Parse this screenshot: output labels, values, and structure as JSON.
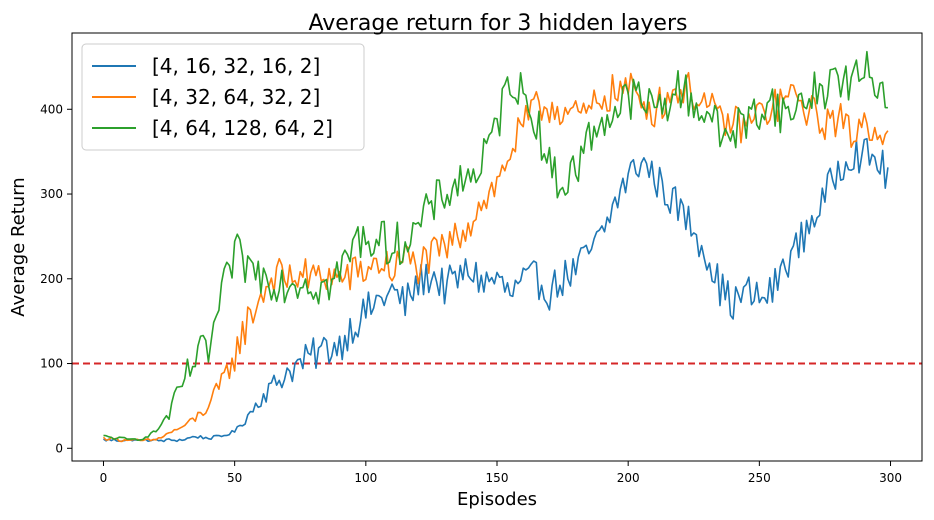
{
  "chart_data": {
    "type": "line",
    "title": "Average return for 3 hidden layers",
    "xlabel": "Episodes",
    "ylabel": "Average Return",
    "xlim": [
      -12,
      312
    ],
    "ylim": [
      -15,
      490
    ],
    "xticks": [
      0,
      50,
      100,
      150,
      200,
      250,
      300
    ],
    "yticks": [
      0,
      100,
      200,
      300,
      400
    ],
    "grid": false,
    "legend_position": "top-left",
    "reference_line": {
      "y": 100,
      "color": "#d62728",
      "style": "dashed"
    },
    "series": [
      {
        "name": "[4, 16, 32, 16, 2]",
        "color": "#1f77b4",
        "keypoints": [
          [
            0,
            10
          ],
          [
            10,
            9
          ],
          [
            20,
            9
          ],
          [
            30,
            10
          ],
          [
            35,
            14
          ],
          [
            40,
            12
          ],
          [
            45,
            14
          ],
          [
            50,
            20
          ],
          [
            55,
            38
          ],
          [
            60,
            60
          ],
          [
            65,
            75
          ],
          [
            70,
            90
          ],
          [
            75,
            100
          ],
          [
            80,
            110
          ],
          [
            85,
            118
          ],
          [
            90,
            122
          ],
          [
            95,
            145
          ],
          [
            100,
            160
          ],
          [
            105,
            175
          ],
          [
            110,
            185
          ],
          [
            115,
            170
          ],
          [
            120,
            195
          ],
          [
            125,
            205
          ],
          [
            130,
            190
          ],
          [
            135,
            200
          ],
          [
            140,
            210
          ],
          [
            145,
            195
          ],
          [
            150,
            200
          ],
          [
            155,
            180
          ],
          [
            160,
            195
          ],
          [
            165,
            200
          ],
          [
            170,
            185
          ],
          [
            175,
            200
          ],
          [
            180,
            210
          ],
          [
            185,
            230
          ],
          [
            190,
            250
          ],
          [
            195,
            290
          ],
          [
            200,
            320
          ],
          [
            205,
            340
          ],
          [
            210,
            320
          ],
          [
            215,
            300
          ],
          [
            220,
            280
          ],
          [
            225,
            260
          ],
          [
            230,
            230
          ],
          [
            235,
            190
          ],
          [
            240,
            170
          ],
          [
            245,
            185
          ],
          [
            250,
            175
          ],
          [
            255,
            185
          ],
          [
            260,
            220
          ],
          [
            265,
            240
          ],
          [
            270,
            270
          ],
          [
            275,
            295
          ],
          [
            280,
            330
          ],
          [
            285,
            350
          ],
          [
            290,
            345
          ],
          [
            295,
            340
          ],
          [
            299,
            320
          ]
        ]
      },
      {
        "name": "[4, 32, 64, 32, 2]",
        "color": "#ff7f0e",
        "keypoints": [
          [
            0,
            12
          ],
          [
            10,
            9
          ],
          [
            15,
            9
          ],
          [
            20,
            10
          ],
          [
            25,
            18
          ],
          [
            30,
            25
          ],
          [
            35,
            35
          ],
          [
            40,
            50
          ],
          [
            45,
            75
          ],
          [
            50,
            110
          ],
          [
            55,
            150
          ],
          [
            60,
            180
          ],
          [
            65,
            205
          ],
          [
            70,
            200
          ],
          [
            75,
            205
          ],
          [
            80,
            200
          ],
          [
            85,
            205
          ],
          [
            90,
            200
          ],
          [
            95,
            205
          ],
          [
            100,
            210
          ],
          [
            105,
            220
          ],
          [
            110,
            210
          ],
          [
            115,
            225
          ],
          [
            120,
            215
          ],
          [
            125,
            225
          ],
          [
            130,
            235
          ],
          [
            135,
            250
          ],
          [
            140,
            270
          ],
          [
            145,
            295
          ],
          [
            150,
            310
          ],
          [
            155,
            350
          ],
          [
            160,
            380
          ],
          [
            165,
            400
          ],
          [
            170,
            405
          ],
          [
            175,
            400
          ],
          [
            180,
            390
          ],
          [
            185,
            395
          ],
          [
            190,
            415
          ],
          [
            195,
            420
          ],
          [
            200,
            425
          ],
          [
            205,
            410
          ],
          [
            210,
            400
          ],
          [
            215,
            415
          ],
          [
            220,
            425
          ],
          [
            225,
            420
          ],
          [
            230,
            405
          ],
          [
            235,
            385
          ],
          [
            240,
            385
          ],
          [
            245,
            380
          ],
          [
            250,
            395
          ],
          [
            255,
            400
          ],
          [
            260,
            415
          ],
          [
            265,
            410
          ],
          [
            270,
            395
          ],
          [
            275,
            385
          ],
          [
            280,
            390
          ],
          [
            285,
            370
          ],
          [
            290,
            385
          ],
          [
            295,
            380
          ],
          [
            299,
            360
          ]
        ]
      },
      {
        "name": "[4, 64, 128, 64, 2]",
        "color": "#2ca02c",
        "keypoints": [
          [
            0,
            14
          ],
          [
            10,
            10
          ],
          [
            15,
            12
          ],
          [
            20,
            20
          ],
          [
            25,
            40
          ],
          [
            30,
            75
          ],
          [
            35,
            105
          ],
          [
            40,
            115
          ],
          [
            45,
            175
          ],
          [
            50,
            230
          ],
          [
            55,
            215
          ],
          [
            60,
            205
          ],
          [
            65,
            200
          ],
          [
            70,
            195
          ],
          [
            75,
            200
          ],
          [
            80,
            195
          ],
          [
            85,
            190
          ],
          [
            90,
            205
          ],
          [
            95,
            240
          ],
          [
            100,
            250
          ],
          [
            105,
            245
          ],
          [
            110,
            240
          ],
          [
            115,
            245
          ],
          [
            120,
            260
          ],
          [
            125,
            285
          ],
          [
            130,
            300
          ],
          [
            135,
            315
          ],
          [
            140,
            320
          ],
          [
            145,
            340
          ],
          [
            150,
            380
          ],
          [
            155,
            440
          ],
          [
            160,
            415
          ],
          [
            165,
            390
          ],
          [
            170,
            330
          ],
          [
            175,
            310
          ],
          [
            180,
            330
          ],
          [
            185,
            365
          ],
          [
            190,
            390
          ],
          [
            195,
            395
          ],
          [
            200,
            415
          ],
          [
            205,
            410
          ],
          [
            210,
            400
          ],
          [
            215,
            410
          ],
          [
            220,
            425
          ],
          [
            225,
            405
          ],
          [
            230,
            400
          ],
          [
            235,
            370
          ],
          [
            240,
            375
          ],
          [
            245,
            385
          ],
          [
            250,
            400
          ],
          [
            255,
            410
          ],
          [
            260,
            390
          ],
          [
            265,
            405
          ],
          [
            270,
            420
          ],
          [
            275,
            425
          ],
          [
            280,
            440
          ],
          [
            285,
            430
          ],
          [
            290,
            445
          ],
          [
            295,
            430
          ],
          [
            299,
            415
          ]
        ]
      }
    ]
  }
}
